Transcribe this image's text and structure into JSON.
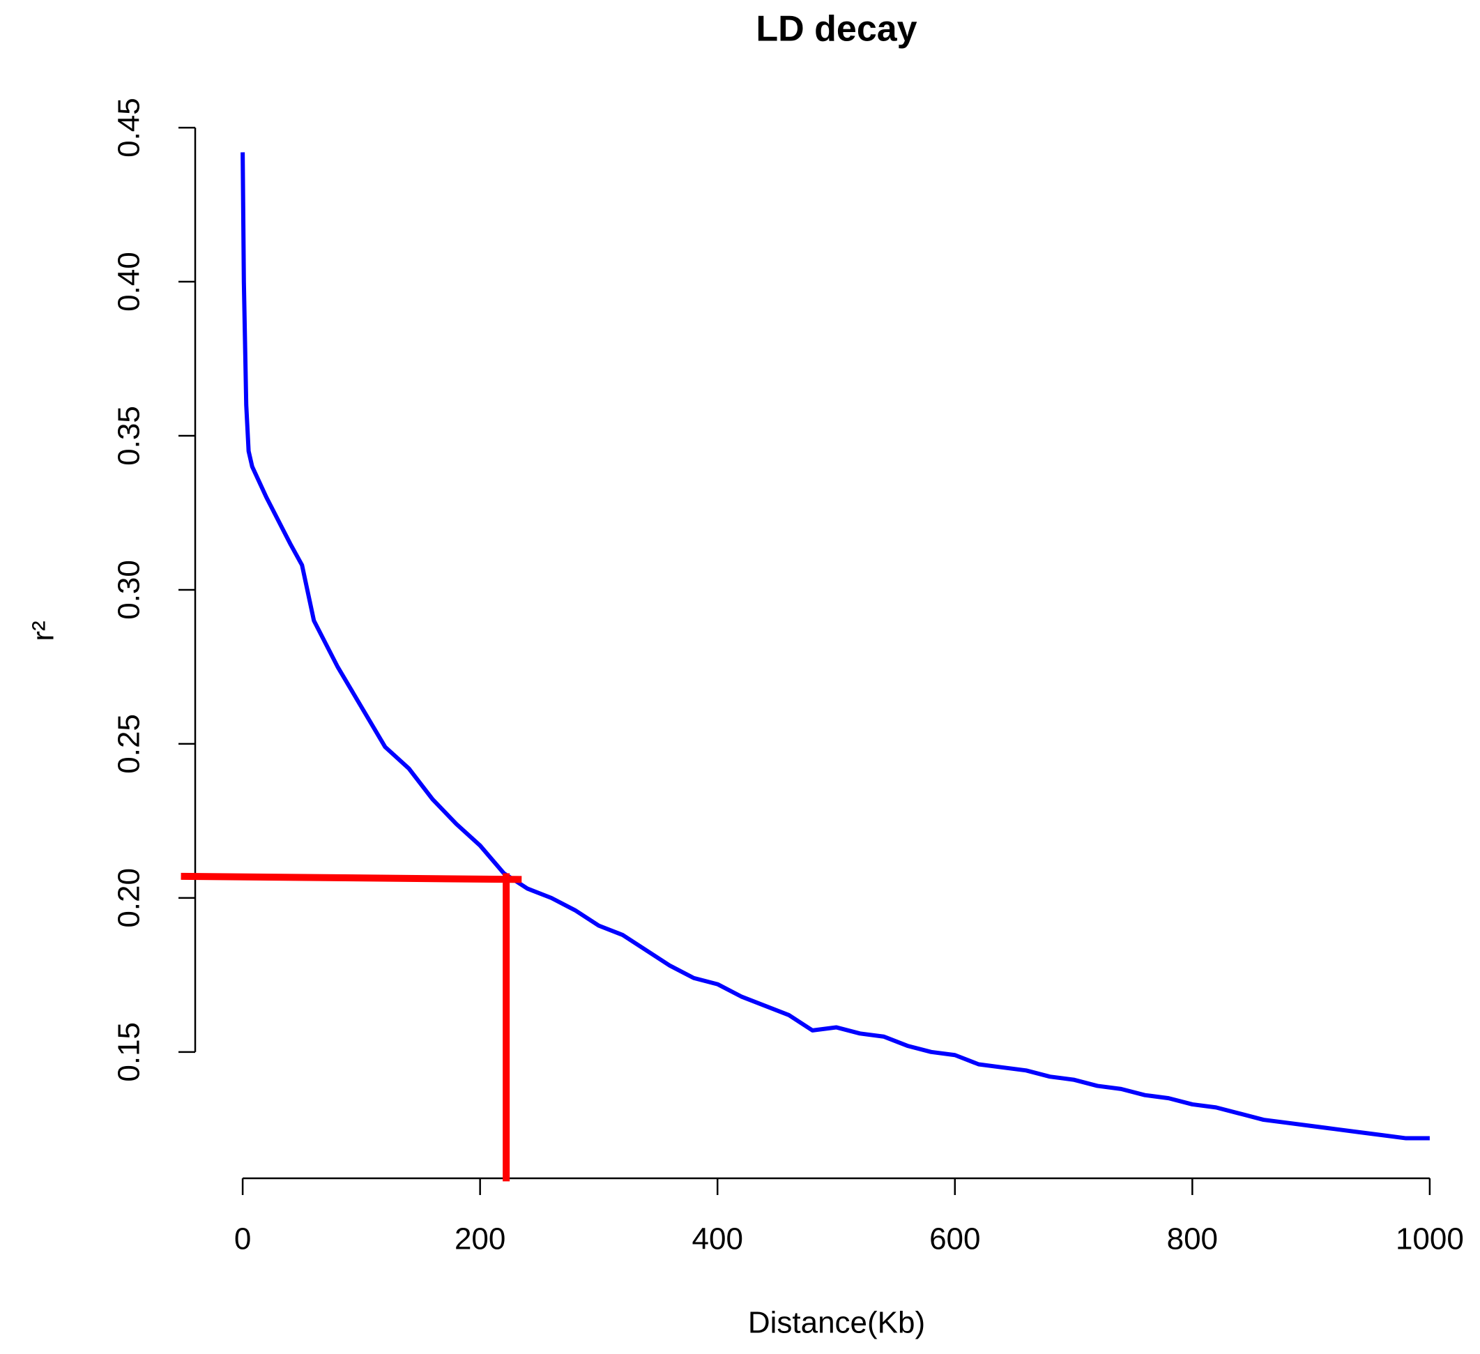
{
  "chart_data": {
    "type": "line",
    "title": "LD decay",
    "xlabel": "Distance(Kb)",
    "ylabel": "r²",
    "xlim": [
      -40,
      1040
    ],
    "ylim": [
      0.109,
      0.455
    ],
    "xticks": [
      0,
      200,
      400,
      600,
      800,
      1000
    ],
    "yticks": [
      0.15,
      0.2,
      0.25,
      0.3,
      0.35,
      0.4,
      0.45
    ],
    "ytick_labels": [
      "0.15",
      "0.20",
      "0.25",
      "0.30",
      "0.35",
      "0.40",
      "0.45"
    ],
    "x": [
      0,
      1,
      3,
      5,
      8,
      20,
      40,
      50,
      60,
      80,
      100,
      120,
      140,
      160,
      180,
      200,
      220,
      240,
      260,
      280,
      300,
      320,
      340,
      360,
      380,
      400,
      420,
      440,
      460,
      480,
      500,
      520,
      540,
      560,
      580,
      600,
      620,
      640,
      660,
      680,
      700,
      720,
      740,
      760,
      780,
      800,
      820,
      840,
      860,
      880,
      900,
      920,
      940,
      960,
      980,
      1000
    ],
    "series": [
      {
        "color": "#0000ff",
        "values": [
          0.442,
          0.4,
          0.36,
          0.345,
          0.34,
          0.33,
          0.315,
          0.308,
          0.29,
          0.275,
          0.262,
          0.249,
          0.242,
          0.232,
          0.224,
          0.217,
          0.208,
          0.203,
          0.2,
          0.196,
          0.191,
          0.188,
          0.183,
          0.178,
          0.174,
          0.172,
          0.168,
          0.165,
          0.162,
          0.157,
          0.158,
          0.156,
          0.155,
          0.152,
          0.15,
          0.149,
          0.146,
          0.145,
          0.144,
          0.142,
          0.141,
          0.139,
          0.138,
          0.136,
          0.135,
          0.133,
          0.132,
          0.13,
          0.128,
          0.127,
          0.126,
          0.125,
          0.124,
          0.123,
          0.122,
          0.122
        ]
      }
    ],
    "reference_lines": [
      {
        "color": "#ff0000",
        "x": [
          -52,
          235
        ],
        "y": [
          0.207,
          0.206
        ]
      },
      {
        "color": "#ff0000",
        "x": [
          222,
          222
        ],
        "y": [
          0.208,
          0.108
        ]
      }
    ]
  }
}
